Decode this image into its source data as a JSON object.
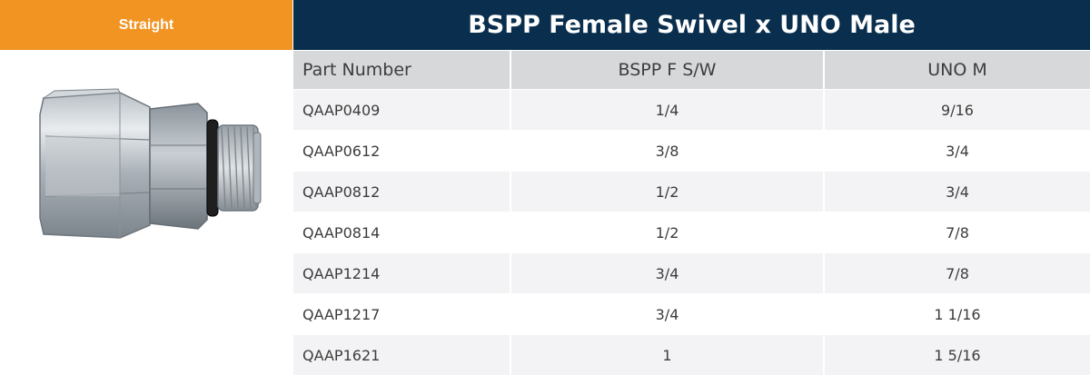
{
  "category_tab": {
    "label": "Straight"
  },
  "title": "BSPP Female Swivel x UNO Male",
  "table": {
    "headers": [
      "Part Number",
      "BSPP F S/W",
      "UNO M"
    ],
    "rows": [
      [
        "QAAP0409",
        "1/4",
        "9/16"
      ],
      [
        "QAAP0612",
        "3/8",
        "3/4"
      ],
      [
        "QAAP0812",
        "1/2",
        "3/4"
      ],
      [
        "QAAP0814",
        "1/2",
        "7/8"
      ],
      [
        "QAAP1214",
        "3/4",
        "7/8"
      ],
      [
        "QAAP1217",
        "3/4",
        "1 1/16"
      ],
      [
        "QAAP1621",
        "1",
        "1 5/16"
      ]
    ]
  },
  "colors": {
    "tab_orange": "#f29422",
    "title_navy": "#0a2f4e",
    "header_gray": "#d7d8da",
    "row_alt": "#f3f3f5"
  }
}
